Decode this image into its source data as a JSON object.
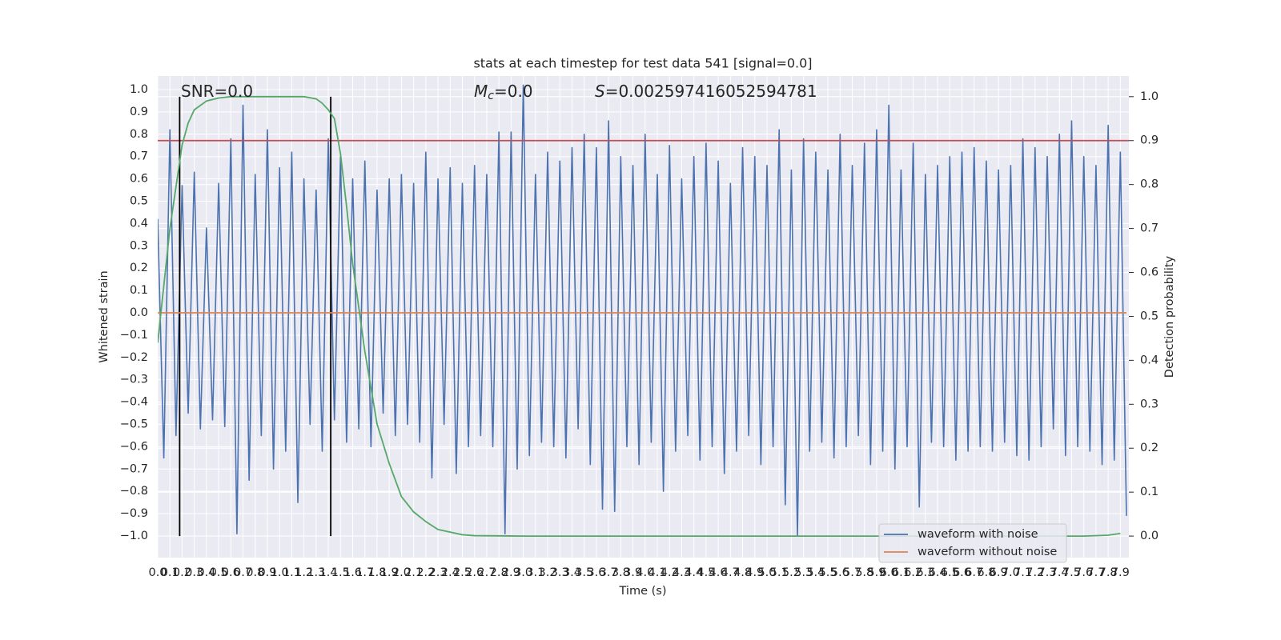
{
  "chart_data": {
    "type": "line",
    "title": "stats at each timestep for test data 541 [signal=0.0]",
    "xlabel": "Time (s)",
    "ylabel": "Whitened strain",
    "y2label": "Detection probability",
    "annotations": [
      {
        "text": "SNR=0.0"
      },
      {
        "symbol": "M",
        "subscript": "c",
        "text": "=0.0"
      },
      {
        "symbol": "S",
        "text": "=0.002597416052594781"
      }
    ],
    "xlim": [
      0,
      7.97
    ],
    "ylim": [
      -1.097,
      1.061
    ],
    "y2lim": [
      -0.049,
      1.047
    ],
    "grid": true,
    "legend": "lower right",
    "xticks": [
      {
        "value": 0,
        "label": "0.0"
      },
      0.1,
      0.2,
      0.3,
      0.4,
      0.5,
      0.6,
      0.7,
      0.8,
      0.9,
      {
        "value": 1,
        "label": "1.0"
      },
      1.1,
      1.2,
      1.3,
      1.4,
      1.5,
      1.6,
      1.7,
      1.8,
      1.9,
      {
        "value": 2,
        "label": "2.0"
      },
      2.1,
      2.2,
      2.3,
      2.4,
      2.5,
      2.6,
      2.7,
      2.8,
      2.9,
      {
        "value": 3,
        "label": "3.0"
      },
      3.1,
      3.2,
      3.3,
      3.4,
      3.5,
      3.6,
      3.7,
      3.8,
      3.9,
      {
        "value": 4,
        "label": "4.0"
      },
      4.1,
      4.2,
      4.3,
      4.4,
      4.5,
      4.6,
      4.7,
      4.8,
      4.9,
      {
        "value": 5,
        "label": "5.0"
      },
      5.1,
      5.2,
      5.3,
      5.4,
      5.5,
      5.6,
      5.7,
      5.8,
      5.9,
      {
        "value": 6,
        "label": "6.0"
      },
      6.1,
      6.2,
      6.3,
      6.4,
      6.5,
      6.6,
      6.7,
      6.8,
      6.9,
      {
        "value": 7,
        "label": "7.0"
      },
      7.1,
      7.2,
      7.3,
      7.4,
      7.5,
      7.6,
      7.7,
      7.8,
      7.9
    ],
    "yticks": [
      {
        "value": -1,
        "label": "−1.0"
      },
      {
        "value": -0.9,
        "label": "−0.9"
      },
      {
        "value": -0.8,
        "label": "−0.8"
      },
      {
        "value": -0.7,
        "label": "−0.7"
      },
      {
        "value": -0.6,
        "label": "−0.6"
      },
      {
        "value": -0.5,
        "label": "−0.5"
      },
      {
        "value": -0.4,
        "label": "−0.4"
      },
      {
        "value": -0.3,
        "label": "−0.3"
      },
      {
        "value": -0.2,
        "label": "−0.2"
      },
      {
        "value": -0.1,
        "label": "−0.1"
      },
      {
        "value": 0,
        "label": "0.0"
      },
      0.1,
      0.2,
      0.3,
      0.4,
      0.5,
      0.6,
      0.7,
      0.8,
      0.9,
      {
        "value": 1,
        "label": "1.0"
      }
    ],
    "y2ticks": [
      {
        "value": 0,
        "label": "0.0"
      },
      0.1,
      0.2,
      0.3,
      0.4,
      0.5,
      0.6,
      0.7,
      0.8,
      0.9,
      {
        "value": 1,
        "label": "1.0"
      }
    ],
    "hlines": [
      {
        "value": 0.9,
        "axis": "y2",
        "color": "#c44e52"
      }
    ],
    "vlines": [
      {
        "x": 0.18,
        "ymin": 0,
        "ymax": 1,
        "axis": "y2",
        "color": "#000000"
      },
      {
        "x": 1.42,
        "ymin": 0,
        "ymax": 1,
        "axis": "y2",
        "color": "#000000"
      }
    ],
    "series": [
      {
        "name": "waveform with noise",
        "color": "#4c72b0",
        "axis": "y",
        "x": [
          0,
          0.05,
          0.1,
          0.15,
          0.2,
          0.25,
          0.3,
          0.35,
          0.4,
          0.45,
          0.5,
          0.55,
          0.6,
          0.65,
          0.7,
          0.75,
          0.8,
          0.85,
          0.9,
          0.95,
          1,
          1.05,
          1.1,
          1.15,
          1.2,
          1.25,
          1.3,
          1.35,
          1.4,
          1.45,
          1.5,
          1.55,
          1.6,
          1.65,
          1.7,
          1.75,
          1.8,
          1.85,
          1.9,
          1.95,
          2,
          2.05,
          2.1,
          2.15,
          2.2,
          2.25,
          2.3,
          2.35,
          2.4,
          2.45,
          2.5,
          2.55,
          2.6,
          2.65,
          2.7,
          2.75,
          2.8,
          2.85,
          2.9,
          2.95,
          3,
          3.05,
          3.1,
          3.15,
          3.2,
          3.25,
          3.3,
          3.35,
          3.4,
          3.45,
          3.5,
          3.55,
          3.6,
          3.65,
          3.7,
          3.75,
          3.8,
          3.85,
          3.9,
          3.95,
          4,
          4.05,
          4.1,
          4.15,
          4.2,
          4.25,
          4.3,
          4.35,
          4.4,
          4.45,
          4.5,
          4.55,
          4.6,
          4.65,
          4.7,
          4.75,
          4.8,
          4.85,
          4.9,
          4.95,
          5,
          5.05,
          5.1,
          5.15,
          5.2,
          5.25,
          5.3,
          5.35,
          5.4,
          5.45,
          5.5,
          5.55,
          5.6,
          5.65,
          5.7,
          5.75,
          5.8,
          5.85,
          5.9,
          5.95,
          6,
          6.05,
          6.1,
          6.15,
          6.2,
          6.25,
          6.3,
          6.35,
          6.4,
          6.45,
          6.5,
          6.55,
          6.6,
          6.65,
          6.7,
          6.75,
          6.8,
          6.85,
          6.9,
          6.95,
          7,
          7.05,
          7.1,
          7.15,
          7.2,
          7.25,
          7.3,
          7.35,
          7.4,
          7.45,
          7.5,
          7.55,
          7.6,
          7.65,
          7.7,
          7.75,
          7.8,
          7.85,
          7.9,
          7.95
        ],
        "values": [
          0.42,
          -0.65,
          0.82,
          -0.55,
          0.57,
          -0.45,
          0.63,
          -0.52,
          0.38,
          -0.48,
          0.58,
          -0.51,
          0.78,
          -0.99,
          0.93,
          -0.75,
          0.62,
          -0.55,
          0.82,
          -0.7,
          0.65,
          -0.62,
          0.72,
          -0.85,
          0.6,
          -0.5,
          0.55,
          -0.62,
          0.78,
          -0.48,
          0.7,
          -0.58,
          0.6,
          -0.52,
          0.68,
          -0.6,
          0.55,
          -0.45,
          0.6,
          -0.55,
          0.62,
          -0.5,
          0.58,
          -0.58,
          0.72,
          -0.74,
          0.6,
          -0.5,
          0.65,
          -0.72,
          0.58,
          -0.6,
          0.66,
          -0.55,
          0.62,
          -0.6,
          0.81,
          -0.99,
          0.81,
          -0.7,
          1.02,
          -0.64,
          0.62,
          -0.58,
          0.72,
          -0.6,
          0.68,
          -0.65,
          0.74,
          -0.52,
          0.8,
          -0.68,
          0.74,
          -0.88,
          0.86,
          -0.89,
          0.7,
          -0.6,
          0.66,
          -0.68,
          0.8,
          -0.58,
          0.62,
          -0.8,
          0.75,
          -0.62,
          0.6,
          -0.55,
          0.7,
          -0.66,
          0.76,
          -0.6,
          0.68,
          -0.72,
          0.58,
          -0.62,
          0.74,
          -0.55,
          0.7,
          -0.68,
          0.66,
          -0.6,
          0.82,
          -0.86,
          0.64,
          -1.0,
          0.78,
          -0.62,
          0.72,
          -0.58,
          0.64,
          -0.65,
          0.8,
          -0.6,
          0.66,
          -0.55,
          0.76,
          -0.68,
          0.82,
          -0.62,
          0.93,
          -0.7,
          0.64,
          -0.6,
          0.76,
          -0.87,
          0.62,
          -0.58,
          0.66,
          -0.6,
          0.7,
          -0.66,
          0.72,
          -0.62,
          0.74,
          -0.6,
          0.68,
          -0.62,
          0.64,
          -0.58,
          0.66,
          -0.64,
          0.78,
          -0.66,
          0.74,
          -0.6,
          0.7,
          -0.52,
          0.8,
          -0.64,
          0.86,
          -0.6,
          0.7,
          -0.62,
          0.66,
          -0.68,
          0.84,
          -0.66,
          0.72,
          -0.91
        ]
      },
      {
        "name": "waveform without noise",
        "color": "#dd8452",
        "axis": "y",
        "x": [
          0,
          7.95
        ],
        "values": [
          0,
          0
        ]
      },
      {
        "color": "#55a868",
        "axis": "y2",
        "x": [
          0,
          0.1,
          0.2,
          0.25,
          0.3,
          0.4,
          0.5,
          0.6,
          1.2,
          1.3,
          1.35,
          1.4,
          1.45,
          1.5,
          1.55,
          1.6,
          1.7,
          1.8,
          1.9,
          2,
          2.1,
          2.2,
          2.3,
          2.4,
          2.5,
          2.6,
          3,
          7.6,
          7.8,
          7.9
        ],
        "values": [
          0.44,
          0.7,
          0.89,
          0.94,
          0.97,
          0.99,
          0.997,
          1.0,
          1.0,
          0.995,
          0.985,
          0.97,
          0.95,
          0.87,
          0.75,
          0.62,
          0.42,
          0.255,
          0.165,
          0.09,
          0.055,
          0.033,
          0.015,
          0.009,
          0.003,
          0.001,
          0,
          0,
          0.002,
          0.006
        ]
      }
    ]
  }
}
